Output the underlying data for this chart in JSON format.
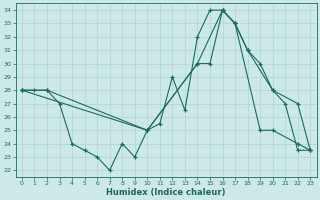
{
  "xlabel": "Humidex (Indice chaleur)",
  "bg_color": "#cce8e8",
  "grid_color": "#b0d4d4",
  "line_color": "#1a6b5a",
  "xlim": [
    -0.5,
    23.5
  ],
  "ylim": [
    21.5,
    34.5
  ],
  "yticks": [
    22,
    23,
    24,
    25,
    26,
    27,
    28,
    29,
    30,
    31,
    32,
    33,
    34
  ],
  "xticks": [
    0,
    1,
    2,
    3,
    4,
    5,
    6,
    7,
    8,
    9,
    10,
    11,
    12,
    13,
    14,
    15,
    16,
    17,
    18,
    19,
    20,
    21,
    22,
    23
  ],
  "line1_x": [
    0,
    1,
    2,
    3,
    4,
    5,
    6,
    7,
    8,
    9,
    10,
    11,
    12,
    13,
    14,
    15,
    16,
    17,
    18,
    19,
    20,
    21,
    22,
    23
  ],
  "line1_y": [
    28,
    28,
    28,
    27,
    24,
    23.5,
    23,
    22,
    24,
    23,
    25,
    25.5,
    29,
    26.5,
    32,
    34,
    34,
    33,
    31,
    30,
    28,
    27,
    23.5,
    23.5
  ],
  "line2_x": [
    0,
    2,
    10,
    14,
    15,
    16,
    17,
    19,
    20,
    22,
    23
  ],
  "line2_y": [
    28,
    28,
    25,
    30,
    30,
    34,
    33,
    25,
    25,
    24,
    23.5
  ],
  "line3_x": [
    0,
    10,
    14,
    16,
    17,
    18,
    20,
    22,
    23
  ],
  "line3_y": [
    28,
    25,
    30,
    34,
    33,
    31,
    28,
    27,
    23.5
  ]
}
